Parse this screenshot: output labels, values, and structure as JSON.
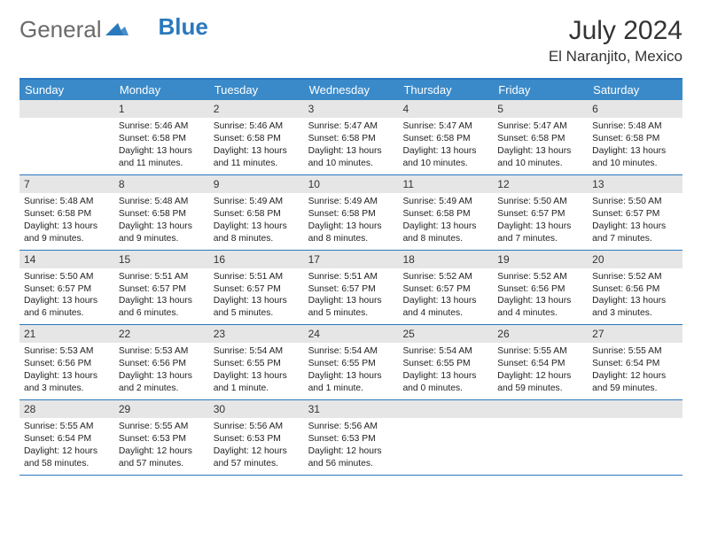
{
  "logo": {
    "text1": "General",
    "text2": "Blue"
  },
  "title": "July 2024",
  "location": "El Naranjito, Mexico",
  "colors": {
    "accent": "#2a79bd",
    "header_bg": "#3a8ac9",
    "daynum_bg": "#e6e6e6",
    "text": "#222222",
    "logo_gray": "#6a6a6a"
  },
  "day_names": [
    "Sunday",
    "Monday",
    "Tuesday",
    "Wednesday",
    "Thursday",
    "Friday",
    "Saturday"
  ],
  "weeks": [
    [
      {
        "n": "",
        "sr": "",
        "ss": "",
        "dl": ""
      },
      {
        "n": "1",
        "sr": "Sunrise: 5:46 AM",
        "ss": "Sunset: 6:58 PM",
        "dl": "Daylight: 13 hours and 11 minutes."
      },
      {
        "n": "2",
        "sr": "Sunrise: 5:46 AM",
        "ss": "Sunset: 6:58 PM",
        "dl": "Daylight: 13 hours and 11 minutes."
      },
      {
        "n": "3",
        "sr": "Sunrise: 5:47 AM",
        "ss": "Sunset: 6:58 PM",
        "dl": "Daylight: 13 hours and 10 minutes."
      },
      {
        "n": "4",
        "sr": "Sunrise: 5:47 AM",
        "ss": "Sunset: 6:58 PM",
        "dl": "Daylight: 13 hours and 10 minutes."
      },
      {
        "n": "5",
        "sr": "Sunrise: 5:47 AM",
        "ss": "Sunset: 6:58 PM",
        "dl": "Daylight: 13 hours and 10 minutes."
      },
      {
        "n": "6",
        "sr": "Sunrise: 5:48 AM",
        "ss": "Sunset: 6:58 PM",
        "dl": "Daylight: 13 hours and 10 minutes."
      }
    ],
    [
      {
        "n": "7",
        "sr": "Sunrise: 5:48 AM",
        "ss": "Sunset: 6:58 PM",
        "dl": "Daylight: 13 hours and 9 minutes."
      },
      {
        "n": "8",
        "sr": "Sunrise: 5:48 AM",
        "ss": "Sunset: 6:58 PM",
        "dl": "Daylight: 13 hours and 9 minutes."
      },
      {
        "n": "9",
        "sr": "Sunrise: 5:49 AM",
        "ss": "Sunset: 6:58 PM",
        "dl": "Daylight: 13 hours and 8 minutes."
      },
      {
        "n": "10",
        "sr": "Sunrise: 5:49 AM",
        "ss": "Sunset: 6:58 PM",
        "dl": "Daylight: 13 hours and 8 minutes."
      },
      {
        "n": "11",
        "sr": "Sunrise: 5:49 AM",
        "ss": "Sunset: 6:58 PM",
        "dl": "Daylight: 13 hours and 8 minutes."
      },
      {
        "n": "12",
        "sr": "Sunrise: 5:50 AM",
        "ss": "Sunset: 6:57 PM",
        "dl": "Daylight: 13 hours and 7 minutes."
      },
      {
        "n": "13",
        "sr": "Sunrise: 5:50 AM",
        "ss": "Sunset: 6:57 PM",
        "dl": "Daylight: 13 hours and 7 minutes."
      }
    ],
    [
      {
        "n": "14",
        "sr": "Sunrise: 5:50 AM",
        "ss": "Sunset: 6:57 PM",
        "dl": "Daylight: 13 hours and 6 minutes."
      },
      {
        "n": "15",
        "sr": "Sunrise: 5:51 AM",
        "ss": "Sunset: 6:57 PM",
        "dl": "Daylight: 13 hours and 6 minutes."
      },
      {
        "n": "16",
        "sr": "Sunrise: 5:51 AM",
        "ss": "Sunset: 6:57 PM",
        "dl": "Daylight: 13 hours and 5 minutes."
      },
      {
        "n": "17",
        "sr": "Sunrise: 5:51 AM",
        "ss": "Sunset: 6:57 PM",
        "dl": "Daylight: 13 hours and 5 minutes."
      },
      {
        "n": "18",
        "sr": "Sunrise: 5:52 AM",
        "ss": "Sunset: 6:57 PM",
        "dl": "Daylight: 13 hours and 4 minutes."
      },
      {
        "n": "19",
        "sr": "Sunrise: 5:52 AM",
        "ss": "Sunset: 6:56 PM",
        "dl": "Daylight: 13 hours and 4 minutes."
      },
      {
        "n": "20",
        "sr": "Sunrise: 5:52 AM",
        "ss": "Sunset: 6:56 PM",
        "dl": "Daylight: 13 hours and 3 minutes."
      }
    ],
    [
      {
        "n": "21",
        "sr": "Sunrise: 5:53 AM",
        "ss": "Sunset: 6:56 PM",
        "dl": "Daylight: 13 hours and 3 minutes."
      },
      {
        "n": "22",
        "sr": "Sunrise: 5:53 AM",
        "ss": "Sunset: 6:56 PM",
        "dl": "Daylight: 13 hours and 2 minutes."
      },
      {
        "n": "23",
        "sr": "Sunrise: 5:54 AM",
        "ss": "Sunset: 6:55 PM",
        "dl": "Daylight: 13 hours and 1 minute."
      },
      {
        "n": "24",
        "sr": "Sunrise: 5:54 AM",
        "ss": "Sunset: 6:55 PM",
        "dl": "Daylight: 13 hours and 1 minute."
      },
      {
        "n": "25",
        "sr": "Sunrise: 5:54 AM",
        "ss": "Sunset: 6:55 PM",
        "dl": "Daylight: 13 hours and 0 minutes."
      },
      {
        "n": "26",
        "sr": "Sunrise: 5:55 AM",
        "ss": "Sunset: 6:54 PM",
        "dl": "Daylight: 12 hours and 59 minutes."
      },
      {
        "n": "27",
        "sr": "Sunrise: 5:55 AM",
        "ss": "Sunset: 6:54 PM",
        "dl": "Daylight: 12 hours and 59 minutes."
      }
    ],
    [
      {
        "n": "28",
        "sr": "Sunrise: 5:55 AM",
        "ss": "Sunset: 6:54 PM",
        "dl": "Daylight: 12 hours and 58 minutes."
      },
      {
        "n": "29",
        "sr": "Sunrise: 5:55 AM",
        "ss": "Sunset: 6:53 PM",
        "dl": "Daylight: 12 hours and 57 minutes."
      },
      {
        "n": "30",
        "sr": "Sunrise: 5:56 AM",
        "ss": "Sunset: 6:53 PM",
        "dl": "Daylight: 12 hours and 57 minutes."
      },
      {
        "n": "31",
        "sr": "Sunrise: 5:56 AM",
        "ss": "Sunset: 6:53 PM",
        "dl": "Daylight: 12 hours and 56 minutes."
      },
      {
        "n": "",
        "sr": "",
        "ss": "",
        "dl": ""
      },
      {
        "n": "",
        "sr": "",
        "ss": "",
        "dl": ""
      },
      {
        "n": "",
        "sr": "",
        "ss": "",
        "dl": ""
      }
    ]
  ]
}
